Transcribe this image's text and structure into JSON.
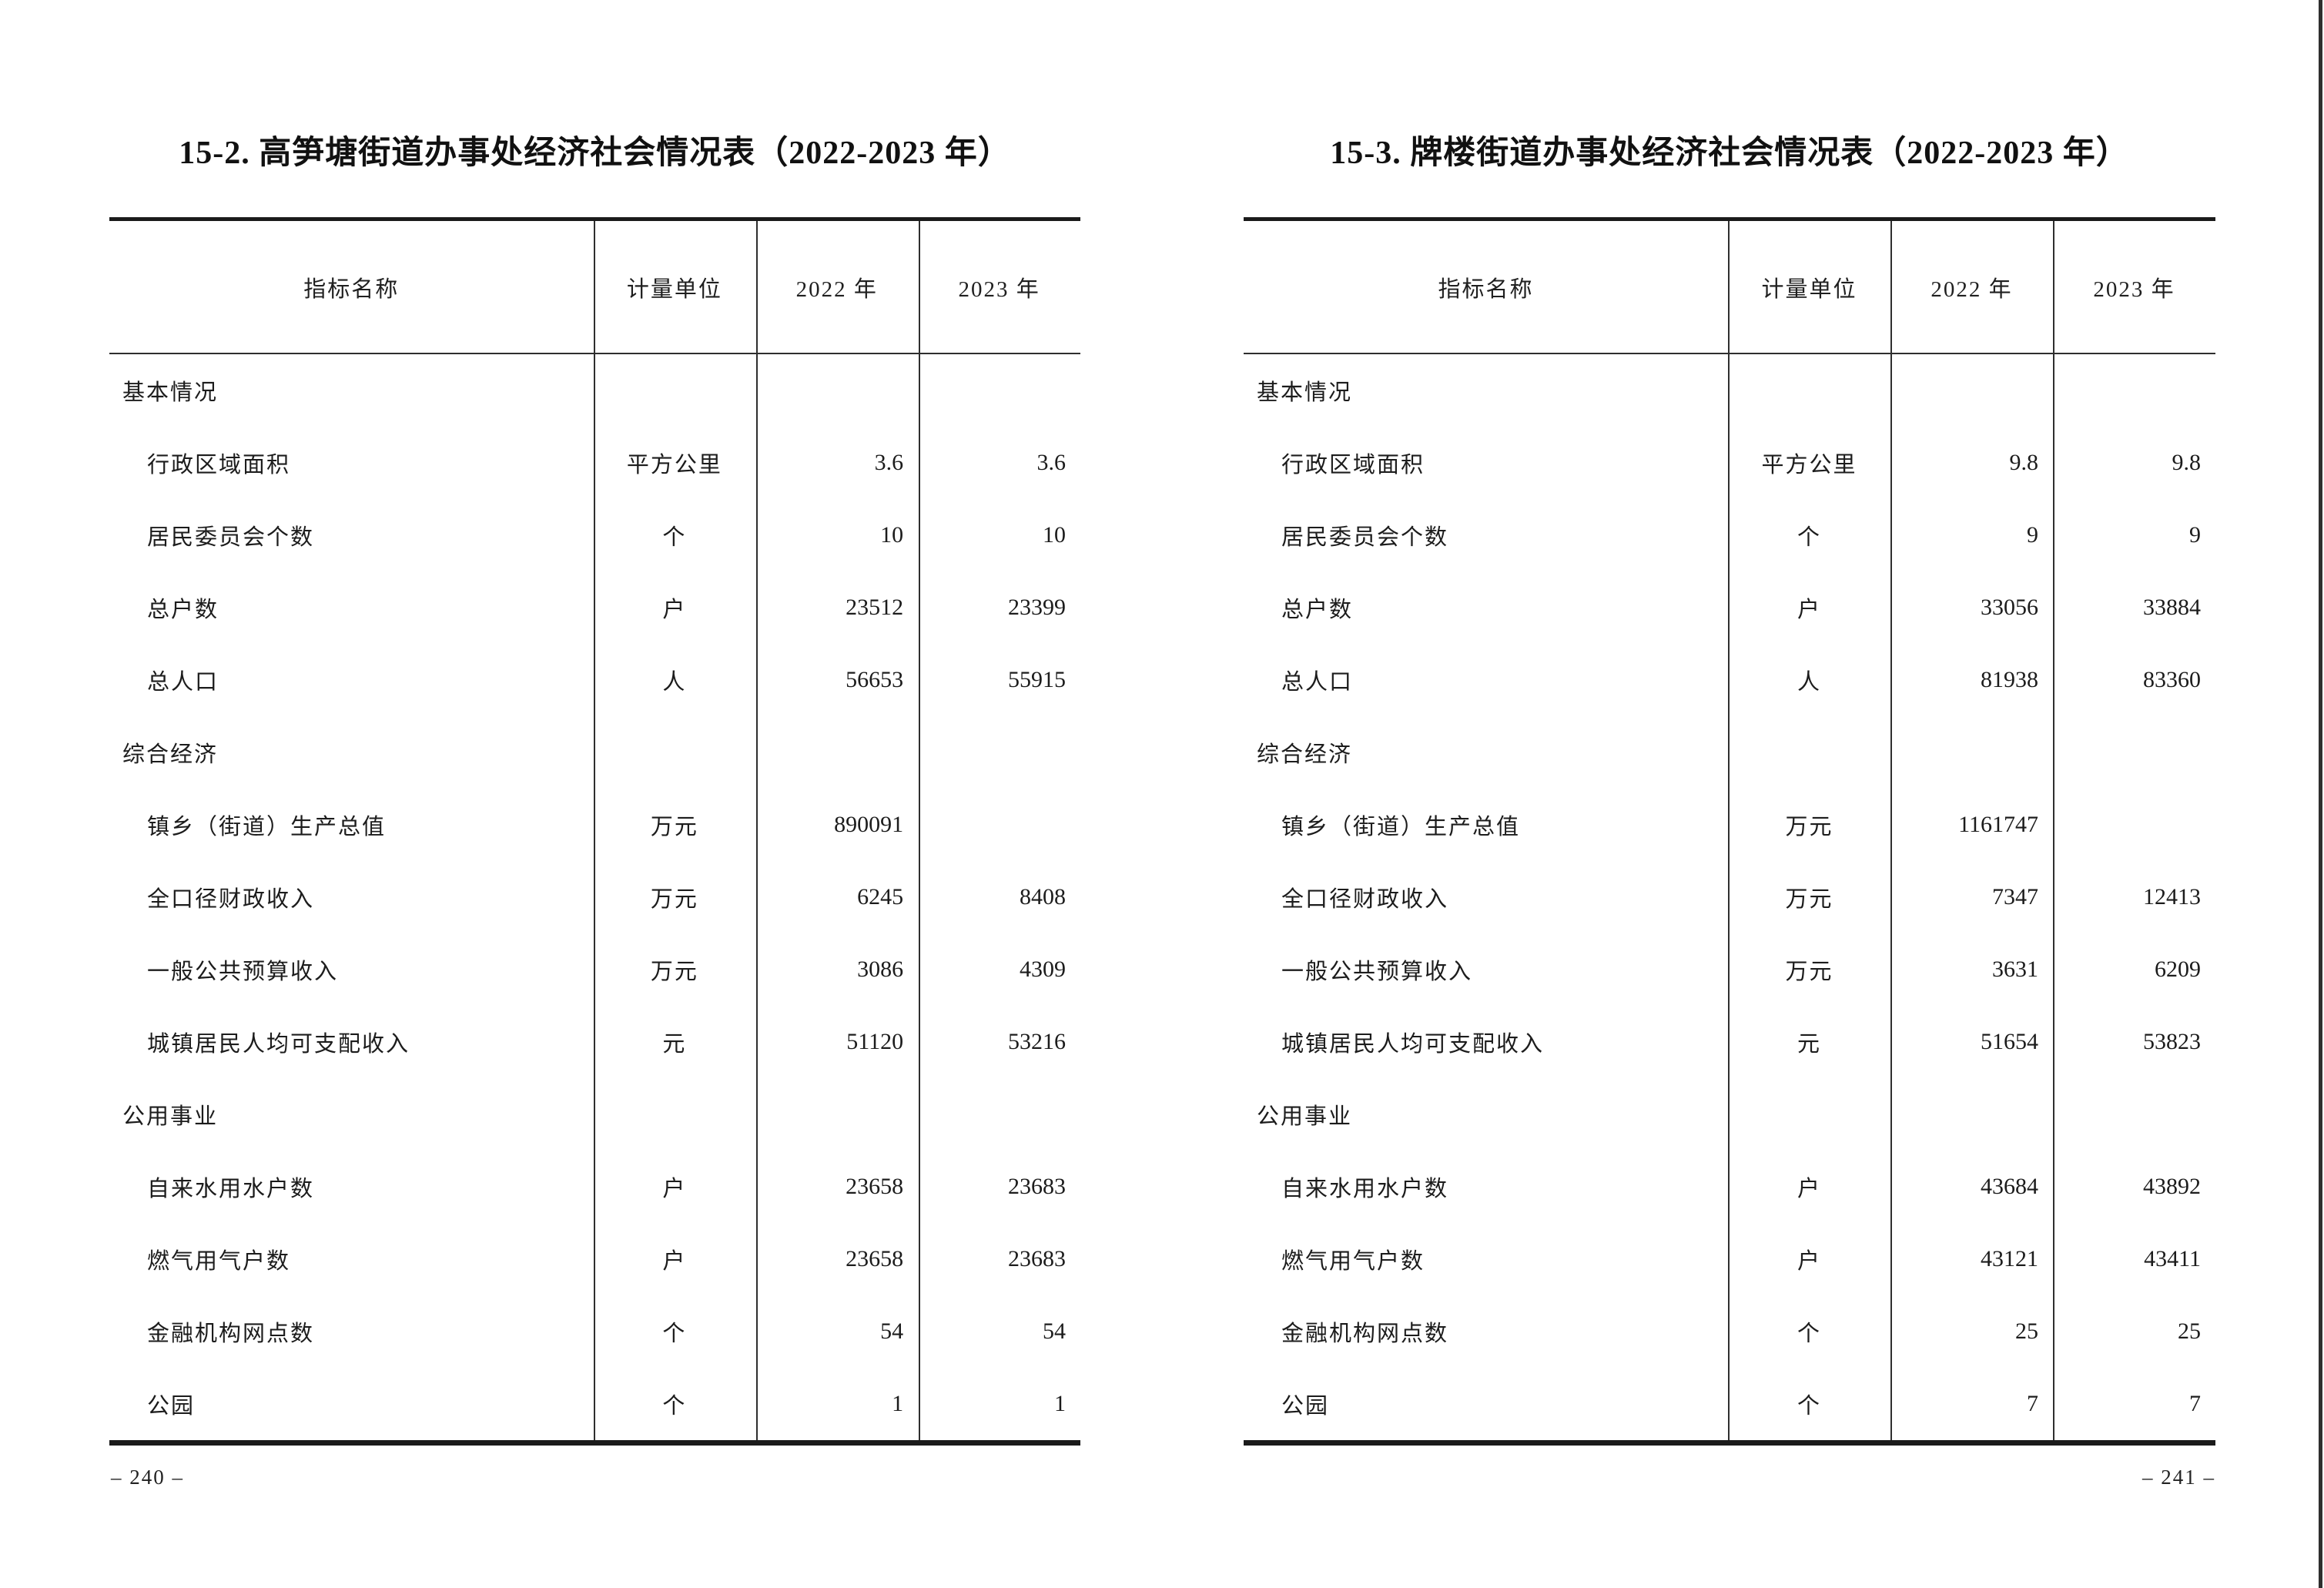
{
  "page": {
    "background": "#ffffff",
    "text_color": "#1c1c1c",
    "rule_color": "#1b1b1b",
    "left_page_number": "– 240 –",
    "right_page_number": "– 241 –"
  },
  "tables": [
    {
      "title": "15-2. 高笋塘街道办事处经济社会情况表（2022-2023 年）",
      "columns": {
        "name": "指标名称",
        "unit": "计量单位",
        "y2022": "2022 年",
        "y2023": "2023 年"
      },
      "rows": [
        {
          "type": "section",
          "name": "基本情况",
          "unit": "",
          "v2022": "",
          "v2023": ""
        },
        {
          "type": "item",
          "name": "行政区域面积",
          "unit": "平方公里",
          "v2022": "3.6",
          "v2023": "3.6"
        },
        {
          "type": "item",
          "name": "居民委员会个数",
          "unit": "个",
          "v2022": "10",
          "v2023": "10"
        },
        {
          "type": "item",
          "name": "总户数",
          "unit": "户",
          "v2022": "23512",
          "v2023": "23399"
        },
        {
          "type": "item",
          "name": "总人口",
          "unit": "人",
          "v2022": "56653",
          "v2023": "55915"
        },
        {
          "type": "section",
          "name": "综合经济",
          "unit": "",
          "v2022": "",
          "v2023": ""
        },
        {
          "type": "item",
          "name": "镇乡（街道）生产总值",
          "unit": "万元",
          "v2022": "890091",
          "v2023": ""
        },
        {
          "type": "item",
          "name": "全口径财政收入",
          "unit": "万元",
          "v2022": "6245",
          "v2023": "8408"
        },
        {
          "type": "item",
          "name": "一般公共预算收入",
          "unit": "万元",
          "v2022": "3086",
          "v2023": "4309"
        },
        {
          "type": "item",
          "name": "城镇居民人均可支配收入",
          "unit": "元",
          "v2022": "51120",
          "v2023": "53216"
        },
        {
          "type": "section",
          "name": "公用事业",
          "unit": "",
          "v2022": "",
          "v2023": ""
        },
        {
          "type": "item",
          "name": "自来水用水户数",
          "unit": "户",
          "v2022": "23658",
          "v2023": "23683"
        },
        {
          "type": "item",
          "name": "燃气用气户数",
          "unit": "户",
          "v2022": "23658",
          "v2023": "23683"
        },
        {
          "type": "item",
          "name": "金融机构网点数",
          "unit": "个",
          "v2022": "54",
          "v2023": "54"
        },
        {
          "type": "item",
          "name": "公园",
          "unit": "个",
          "v2022": "1",
          "v2023": "1"
        }
      ]
    },
    {
      "title": "15-3. 牌楼街道办事处经济社会情况表（2022-2023 年）",
      "columns": {
        "name": "指标名称",
        "unit": "计量单位",
        "y2022": "2022 年",
        "y2023": "2023 年"
      },
      "rows": [
        {
          "type": "section",
          "name": "基本情况",
          "unit": "",
          "v2022": "",
          "v2023": ""
        },
        {
          "type": "item",
          "name": "行政区域面积",
          "unit": "平方公里",
          "v2022": "9.8",
          "v2023": "9.8"
        },
        {
          "type": "item",
          "name": "居民委员会个数",
          "unit": "个",
          "v2022": "9",
          "v2023": "9"
        },
        {
          "type": "item",
          "name": "总户数",
          "unit": "户",
          "v2022": "33056",
          "v2023": "33884"
        },
        {
          "type": "item",
          "name": "总人口",
          "unit": "人",
          "v2022": "81938",
          "v2023": "83360"
        },
        {
          "type": "section",
          "name": "综合经济",
          "unit": "",
          "v2022": "",
          "v2023": ""
        },
        {
          "type": "item",
          "name": "镇乡（街道）生产总值",
          "unit": "万元",
          "v2022": "1161747",
          "v2023": ""
        },
        {
          "type": "item",
          "name": "全口径财政收入",
          "unit": "万元",
          "v2022": "7347",
          "v2023": "12413"
        },
        {
          "type": "item",
          "name": "一般公共预算收入",
          "unit": "万元",
          "v2022": "3631",
          "v2023": "6209"
        },
        {
          "type": "item",
          "name": "城镇居民人均可支配收入",
          "unit": "元",
          "v2022": "51654",
          "v2023": "53823"
        },
        {
          "type": "section",
          "name": "公用事业",
          "unit": "",
          "v2022": "",
          "v2023": ""
        },
        {
          "type": "item",
          "name": "自来水用水户数",
          "unit": "户",
          "v2022": "43684",
          "v2023": "43892"
        },
        {
          "type": "item",
          "name": "燃气用气户数",
          "unit": "户",
          "v2022": "43121",
          "v2023": "43411"
        },
        {
          "type": "item",
          "name": "金融机构网点数",
          "unit": "个",
          "v2022": "25",
          "v2023": "25"
        },
        {
          "type": "item",
          "name": "公园",
          "unit": "个",
          "v2022": "7",
          "v2023": "7"
        }
      ]
    }
  ]
}
